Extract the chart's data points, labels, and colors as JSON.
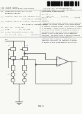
{
  "page_bg": "#f8f8f5",
  "text_color": "#2a2a2a",
  "light_text": "#555555",
  "line_color": "#888888",
  "circuit_color": "#444444",
  "barcode_color": "#111111",
  "header": {
    "line1_left": "(12) United States",
    "line2_left": "(19) Patent Application Publication",
    "line2_right1": "(10) Pub. No.: US 2012/0086566 A1",
    "line2_right2": "(43) Pub. Date:       Apr. 12, 2012"
  },
  "bib_entries": [
    [
      "(54)",
      "TEMPERATURE-STABLE CMOS VOLTAGE"
    ],
    [
      "",
      "REFERENCE CIRCUITS"
    ],
    [
      "(75)",
      "Inventors: Wang Ling Goh, Singapore (SG);"
    ],
    [
      "",
      "                    Yong Ping Xu, Singapore (SG)"
    ],
    [
      "(73)",
      "Assignee: Agency for Science, Technology"
    ],
    [
      "",
      "                    and Research, Singapore (SG)"
    ],
    [
      "(21)",
      "Appl. No.:  13/166,852"
    ],
    [
      "(22)",
      "Filed:          Jun. 23, 2011"
    ],
    [
      "(30)",
      "Foreign Application Priority Data"
    ],
    [
      "",
      "Jun. 25, 2010  (SG) ........  201004591-4"
    ]
  ],
  "classification": [
    "(51) Int. Cl.",
    "      G05F 3/26          (2006.01)",
    "(52) U.S. Cl. ........................... 323/315"
  ],
  "abstract_lines": [
    "A temperature stable voltage reference circuit comprising",
    "a bandgap, the voltage reference circuit being operable",
    "to produce a reference voltage. A first circuit is coupled",
    "to the bandgap. A second circuit is coupled to the first",
    "circuit and to the bandgap. A comparator is coupled to",
    "the second circuit. The first circuit is operable to",
    "generate a first voltage having a first temperature",
    "coefficient. The second circuit is operable to generate",
    "a second voltage having a second temperature",
    "coefficient that is opposite in sign to the first",
    "temperature coefficient. The comparator is operable",
    "to generate a third voltage based on the first and"
  ],
  "fig_label": "FIG. 1"
}
